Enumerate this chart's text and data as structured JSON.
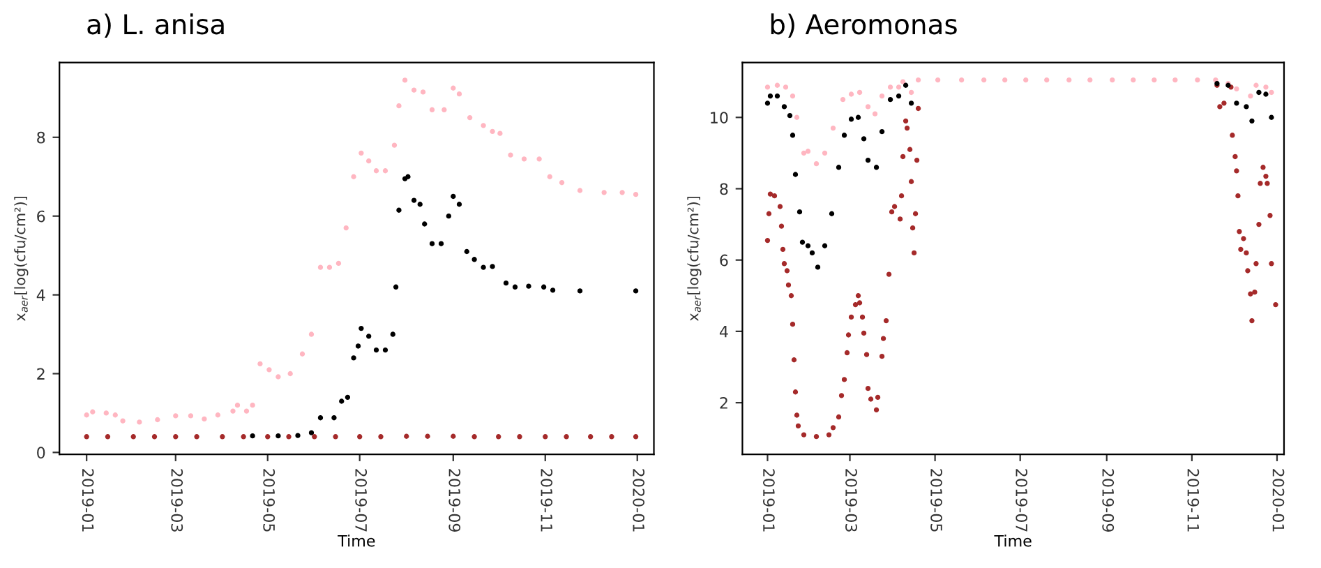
{
  "chart_data": [
    {
      "type": "scatter",
      "title": "a) L. anisa",
      "xlabel": "Time",
      "ylabel": "x$_{aer}$[log(cfu/cm²)]",
      "marker": "circle",
      "grid": false,
      "xlim": [
        "2018-12-14",
        "2020-01-12"
      ],
      "ylim": [
        -0.05,
        9.9
      ],
      "xticks": [
        "2019-01",
        "2019-03",
        "2019-05",
        "2019-07",
        "2019-09",
        "2019-11",
        "2020-01"
      ],
      "yticks": [
        0,
        2,
        4,
        6,
        8
      ],
      "series": [
        {
          "color": "#000000",
          "x": [
            "2019-04-21",
            "2019-05-08",
            "2019-05-21",
            "2019-05-30",
            "2019-06-05",
            "2019-06-14",
            "2019-06-19",
            "2019-06-23",
            "2019-06-27",
            "2019-06-30",
            "2019-07-02",
            "2019-07-07",
            "2019-07-12",
            "2019-07-18",
            "2019-07-23",
            "2019-07-25",
            "2019-07-27",
            "2019-07-31",
            "2019-08-02",
            "2019-08-06",
            "2019-08-10",
            "2019-08-13",
            "2019-08-18",
            "2019-08-24",
            "2019-08-29",
            "2019-09-01",
            "2019-09-05",
            "2019-09-10",
            "2019-09-15",
            "2019-09-21",
            "2019-09-27",
            "2019-10-06",
            "2019-10-12",
            "2019-10-21",
            "2019-10-31",
            "2019-11-06",
            "2019-11-24",
            "2019-12-31"
          ],
          "values": [
            0.42,
            0.42,
            0.43,
            0.5,
            0.88,
            0.88,
            1.3,
            1.4,
            2.4,
            2.7,
            3.15,
            2.95,
            2.6,
            2.6,
            3.0,
            4.2,
            6.15,
            6.95,
            7.0,
            6.4,
            6.3,
            5.8,
            5.3,
            5.3,
            6.0,
            6.5,
            6.3,
            5.1,
            4.9,
            4.7,
            4.72,
            4.3,
            4.2,
            4.22,
            4.2,
            4.12,
            4.1,
            4.1
          ]
        },
        {
          "color": "#a52a2a",
          "x": [
            "2019-01-01",
            "2019-01-15",
            "2019-02-01",
            "2019-02-15",
            "2019-03-01",
            "2019-03-15",
            "2019-04-01",
            "2019-04-15",
            "2019-05-01",
            "2019-05-15",
            "2019-06-01",
            "2019-06-15",
            "2019-07-01",
            "2019-07-15",
            "2019-08-01",
            "2019-08-15",
            "2019-09-01",
            "2019-09-15",
            "2019-10-01",
            "2019-10-15",
            "2019-11-01",
            "2019-11-15",
            "2019-12-01",
            "2019-12-15",
            "2019-12-31"
          ],
          "values": [
            0.4,
            0.4,
            0.4,
            0.4,
            0.4,
            0.4,
            0.4,
            0.4,
            0.4,
            0.4,
            0.4,
            0.4,
            0.4,
            0.4,
            0.41,
            0.41,
            0.41,
            0.4,
            0.4,
            0.4,
            0.4,
            0.4,
            0.4,
            0.4,
            0.4
          ]
        },
        {
          "color": "#ffb6c1",
          "x": [
            "2019-01-01",
            "2019-01-05",
            "2019-01-14",
            "2019-01-20",
            "2019-01-25",
            "2019-02-05",
            "2019-02-17",
            "2019-03-01",
            "2019-03-11",
            "2019-03-20",
            "2019-03-29",
            "2019-04-08",
            "2019-04-11",
            "2019-04-17",
            "2019-04-21",
            "2019-04-26",
            "2019-05-02",
            "2019-05-08",
            "2019-05-16",
            "2019-05-24",
            "2019-05-30",
            "2019-06-05",
            "2019-06-11",
            "2019-06-17",
            "2019-06-22",
            "2019-06-27",
            "2019-07-02",
            "2019-07-07",
            "2019-07-12",
            "2019-07-18",
            "2019-07-24",
            "2019-07-27",
            "2019-07-31",
            "2019-08-06",
            "2019-08-12",
            "2019-08-18",
            "2019-08-26",
            "2019-09-01",
            "2019-09-05",
            "2019-09-12",
            "2019-09-21",
            "2019-09-27",
            "2019-10-02",
            "2019-10-09",
            "2019-10-18",
            "2019-10-28",
            "2019-11-04",
            "2019-11-12",
            "2019-11-24",
            "2019-12-10",
            "2019-12-22",
            "2019-12-31"
          ],
          "values": [
            0.95,
            1.03,
            1.0,
            0.95,
            0.8,
            0.77,
            0.83,
            0.93,
            0.93,
            0.85,
            0.95,
            1.05,
            1.2,
            1.05,
            1.2,
            2.25,
            2.1,
            1.92,
            2.0,
            2.5,
            3.0,
            4.7,
            4.7,
            4.8,
            5.7,
            7.0,
            7.6,
            7.4,
            7.15,
            7.15,
            7.8,
            8.8,
            9.45,
            9.2,
            9.15,
            8.7,
            8.7,
            9.25,
            9.1,
            8.5,
            8.3,
            8.15,
            8.1,
            7.55,
            7.45,
            7.45,
            7.0,
            6.85,
            6.65,
            6.6,
            6.6,
            6.55
          ]
        }
      ]
    },
    {
      "type": "scatter",
      "title": "b) Aeromonas",
      "xlabel": "Time",
      "ylabel": "x$_{aer}$[log(cfu/cm²)]",
      "marker": "circle",
      "grid": false,
      "xlim": [
        "2018-12-14",
        "2020-01-06"
      ],
      "ylim": [
        0.55,
        11.54
      ],
      "xticks": [
        "2019-01",
        "2019-03",
        "2019-05",
        "2019-07",
        "2019-09",
        "2019-11",
        "2020-01"
      ],
      "yticks": [
        2,
        4,
        6,
        8,
        10
      ],
      "series": [
        {
          "color": "#a52a2a",
          "x": [
            "2019-01-01",
            "2019-01-02",
            "2019-01-03",
            "2019-01-06",
            "2019-01-10",
            "2019-01-11",
            "2019-01-12",
            "2019-01-13",
            "2019-01-15",
            "2019-01-16",
            "2019-01-18",
            "2019-01-19",
            "2019-01-20",
            "2019-01-21",
            "2019-01-22",
            "2019-01-23",
            "2019-01-27",
            "2019-02-05",
            "2019-02-14",
            "2019-02-17",
            "2019-02-21",
            "2019-02-23",
            "2019-02-25",
            "2019-02-27",
            "2019-02-28",
            "2019-03-02",
            "2019-03-05",
            "2019-03-07",
            "2019-03-08",
            "2019-03-10",
            "2019-03-11",
            "2019-03-13",
            "2019-03-14",
            "2019-03-16",
            "2019-03-20",
            "2019-03-21",
            "2019-03-24",
            "2019-03-25",
            "2019-03-27",
            "2019-03-29",
            "2019-03-31",
            "2019-04-02",
            "2019-04-06",
            "2019-04-07",
            "2019-04-08",
            "2019-04-10",
            "2019-04-11",
            "2019-04-13",
            "2019-04-14",
            "2019-04-15",
            "2019-04-16",
            "2019-04-17",
            "2019-04-18",
            "2019-04-19",
            "2019-11-19",
            "2019-11-21",
            "2019-11-24",
            "2019-11-29",
            "2019-11-30",
            "2019-12-02",
            "2019-12-03",
            "2019-12-04",
            "2019-12-05",
            "2019-12-06",
            "2019-12-08",
            "2019-12-10",
            "2019-12-11",
            "2019-12-13",
            "2019-12-14",
            "2019-12-16",
            "2019-12-17",
            "2019-12-19",
            "2019-12-20",
            "2019-12-22",
            "2019-12-24",
            "2019-12-25",
            "2019-12-27",
            "2019-12-28",
            "2019-12-31"
          ],
          "values": [
            6.55,
            7.3,
            7.85,
            7.8,
            7.5,
            6.95,
            6.3,
            5.9,
            5.7,
            5.3,
            5.0,
            4.2,
            3.2,
            2.3,
            1.65,
            1.35,
            1.1,
            1.05,
            1.1,
            1.3,
            1.6,
            2.2,
            2.65,
            3.4,
            3.9,
            4.4,
            4.75,
            5.0,
            4.8,
            4.4,
            3.95,
            3.35,
            2.4,
            2.1,
            1.8,
            2.15,
            3.3,
            3.8,
            4.3,
            5.6,
            7.35,
            7.5,
            7.15,
            7.8,
            8.9,
            9.9,
            9.7,
            9.1,
            8.2,
            6.9,
            6.2,
            7.3,
            8.8,
            10.25,
            10.9,
            10.3,
            10.4,
            10.85,
            9.5,
            8.9,
            8.5,
            7.8,
            6.8,
            6.3,
            6.6,
            6.2,
            5.7,
            5.05,
            4.3,
            5.1,
            5.9,
            7.0,
            8.15,
            8.6,
            8.35,
            8.15,
            7.25,
            5.9,
            4.75
          ]
        },
        {
          "color": "#ffb6c1",
          "x": [
            "2019-01-01",
            "2019-01-08",
            "2019-01-14",
            "2019-01-19",
            "2019-01-22",
            "2019-01-27",
            "2019-01-30",
            "2019-02-05",
            "2019-02-11",
            "2019-02-17",
            "2019-02-24",
            "2019-03-02",
            "2019-03-08",
            "2019-03-14",
            "2019-03-19",
            "2019-03-24",
            "2019-03-30",
            "2019-04-05",
            "2019-04-08",
            "2019-04-14",
            "2019-04-19",
            "2019-05-03",
            "2019-05-20",
            "2019-06-05",
            "2019-06-20",
            "2019-07-05",
            "2019-07-20",
            "2019-08-05",
            "2019-08-20",
            "2019-09-05",
            "2019-09-20",
            "2019-10-05",
            "2019-10-20",
            "2019-11-05",
            "2019-11-18",
            "2019-11-27",
            "2019-12-03",
            "2019-12-13",
            "2019-12-17",
            "2019-12-24",
            "2019-12-28"
          ],
          "values": [
            10.85,
            10.9,
            10.85,
            10.6,
            10.0,
            9.0,
            9.05,
            8.7,
            9.0,
            9.7,
            10.5,
            10.65,
            10.7,
            10.3,
            10.1,
            10.6,
            10.85,
            10.85,
            11.0,
            10.7,
            11.05,
            11.05,
            11.05,
            11.05,
            11.05,
            11.05,
            11.05,
            11.05,
            11.05,
            11.05,
            11.05,
            11.05,
            11.05,
            11.05,
            11.05,
            10.95,
            10.8,
            10.6,
            10.9,
            10.85,
            10.7
          ]
        },
        {
          "color": "#000000",
          "x": [
            "2019-01-01",
            "2019-01-03",
            "2019-01-08",
            "2019-01-13",
            "2019-01-17",
            "2019-01-19",
            "2019-01-21",
            "2019-01-24",
            "2019-01-26",
            "2019-01-30",
            "2019-02-02",
            "2019-02-06",
            "2019-02-11",
            "2019-02-16",
            "2019-02-21",
            "2019-02-25",
            "2019-03-02",
            "2019-03-07",
            "2019-03-11",
            "2019-03-14",
            "2019-03-20",
            "2019-03-24",
            "2019-03-30",
            "2019-04-05",
            "2019-04-10",
            "2019-04-14",
            "2019-04-19",
            "2019-11-19",
            "2019-11-27",
            "2019-12-03",
            "2019-12-10",
            "2019-12-14",
            "2019-12-19",
            "2019-12-24",
            "2019-12-28"
          ],
          "values": [
            10.4,
            10.6,
            10.6,
            10.3,
            10.05,
            9.5,
            8.4,
            7.35,
            6.5,
            6.4,
            6.2,
            5.8,
            6.4,
            7.3,
            8.6,
            9.5,
            9.95,
            10.0,
            9.4,
            8.8,
            8.6,
            9.6,
            10.5,
            10.6,
            10.9,
            10.4,
            null,
            10.95,
            10.9,
            10.4,
            10.3,
            9.9,
            10.7,
            10.65,
            10.0
          ]
        }
      ]
    }
  ]
}
